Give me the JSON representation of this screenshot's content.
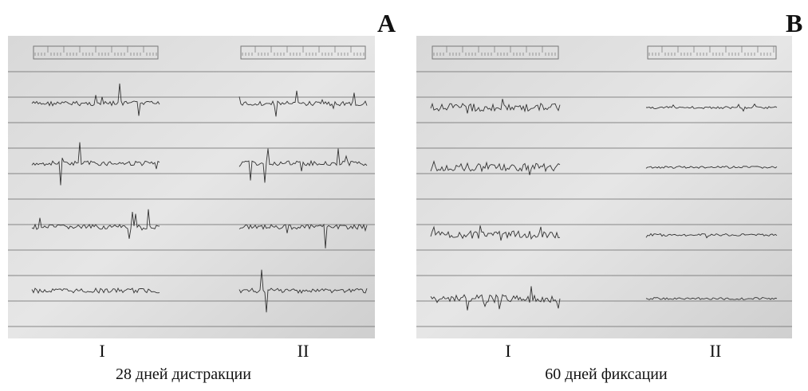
{
  "panels": [
    {
      "label": "A",
      "columns": [
        "I",
        "II"
      ],
      "caption": "28 дней дистракции"
    },
    {
      "label": "B",
      "columns": [
        "I",
        "II"
      ],
      "caption": "60 дней фиксации"
    }
  ]
}
